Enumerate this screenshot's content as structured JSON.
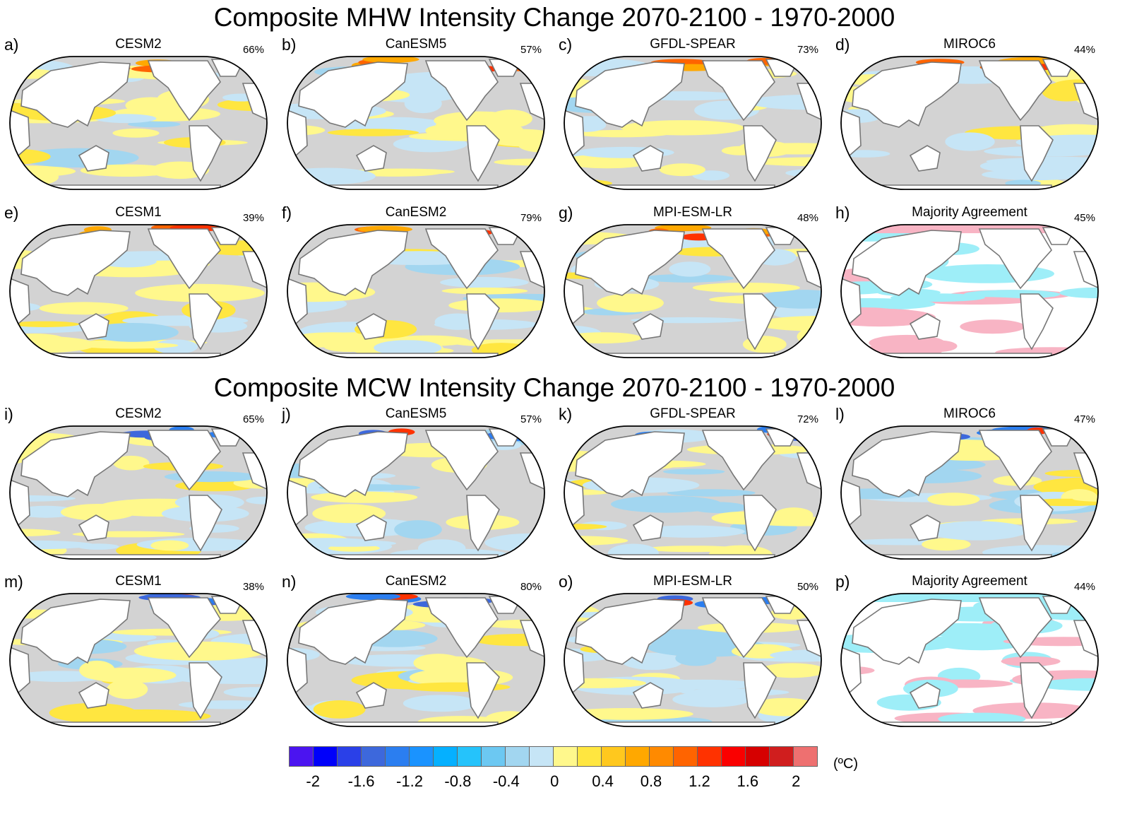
{
  "titles": {
    "mhw": "Composite MHW Intensity Change 2070-2100 - 1970-2000",
    "mcw": "Composite MCW Intensity Change 2070-2100 - 1970-2000"
  },
  "panels": [
    {
      "label": "a)",
      "model": "CESM2",
      "percent": "66%",
      "type": "model"
    },
    {
      "label": "b)",
      "model": "CanESM5",
      "percent": "57%",
      "type": "model"
    },
    {
      "label": "c)",
      "model": "GFDL-SPEAR",
      "percent": "73%",
      "type": "model"
    },
    {
      "label": "d)",
      "model": "MIROC6",
      "percent": "44%",
      "type": "model"
    },
    {
      "label": "e)",
      "model": "CESM1",
      "percent": "39%",
      "type": "model"
    },
    {
      "label": "f)",
      "model": "CanESM2",
      "percent": "79%",
      "type": "model"
    },
    {
      "label": "g)",
      "model": "MPI-ESM-LR",
      "percent": "48%",
      "type": "model"
    },
    {
      "label": "h)",
      "model": "Majority Agreement",
      "percent": "45%",
      "type": "agreement"
    },
    {
      "label": "i)",
      "model": "CESM2",
      "percent": "65%",
      "type": "model"
    },
    {
      "label": "j)",
      "model": "CanESM5",
      "percent": "57%",
      "type": "model"
    },
    {
      "label": "k)",
      "model": "GFDL-SPEAR",
      "percent": "72%",
      "type": "model"
    },
    {
      "label": "l)",
      "model": "MIROC6",
      "percent": "47%",
      "type": "model"
    },
    {
      "label": "m)",
      "model": "CESM1",
      "percent": "38%",
      "type": "model"
    },
    {
      "label": "n)",
      "model": "CanESM2",
      "percent": "80%",
      "type": "model"
    },
    {
      "label": "o)",
      "model": "MPI-ESM-LR",
      "percent": "50%",
      "type": "model"
    },
    {
      "label": "p)",
      "model": "Majority Agreement",
      "percent": "44%",
      "type": "agreement"
    }
  ],
  "colorbar": {
    "colors": [
      "#4b14f0",
      "#0000fa",
      "#2a40e8",
      "#3d68dc",
      "#2b7ef0",
      "#1a93ff",
      "#05b0ff",
      "#25c3fb",
      "#6cc8f2",
      "#a2d6f0",
      "#c6e5f6",
      "#fff88c",
      "#ffe640",
      "#ffc81e",
      "#ffa800",
      "#ff8a00",
      "#ff6400",
      "#ff3200",
      "#fa0000",
      "#d60000",
      "#d01e1e",
      "#ee7070"
    ],
    "ticks": [
      "-2",
      "-1.6",
      "-1.2",
      "-0.8",
      "-0.4",
      "0",
      "0.4",
      "0.8",
      "1.2",
      "1.6",
      "2"
    ],
    "unit": "(ºC)",
    "insignificant_color": "#d3d3d3",
    "agreement_colors": {
      "positive": "#f8b4c4",
      "negative": "#9eeef8"
    }
  }
}
